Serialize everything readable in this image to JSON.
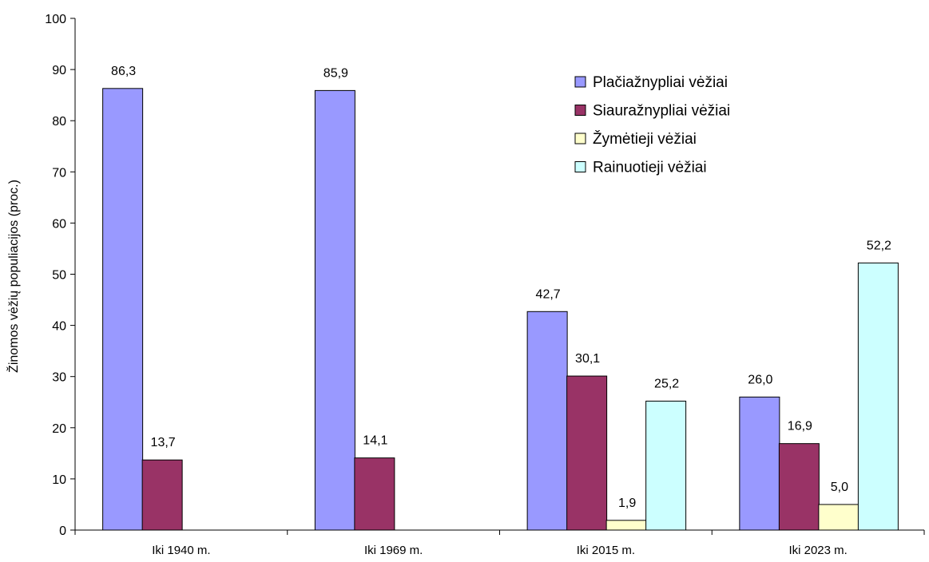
{
  "chart_data": {
    "type": "bar",
    "title": "",
    "xlabel": "",
    "ylabel": "Žinomos vėžių populiacijos (proc.)",
    "ylim": [
      0,
      100
    ],
    "yticks": [
      0,
      10,
      20,
      30,
      40,
      50,
      60,
      70,
      80,
      90,
      100
    ],
    "categories": [
      "Iki 1940 m.",
      "Iki 1969 m.",
      "Iki 2015 m.",
      "Iki 2023 m."
    ],
    "series": [
      {
        "name": "Plačiažnypliai vėžiai",
        "color": "#9999ff",
        "values": [
          86.3,
          85.9,
          42.7,
          26.0
        ],
        "labels": [
          "86,3",
          "85,9",
          "42,7",
          "26,0"
        ]
      },
      {
        "name": "Siauražnypliai vėžiai",
        "color": "#993366",
        "values": [
          13.7,
          14.1,
          30.1,
          16.9
        ],
        "labels": [
          "13,7",
          "14,1",
          "30,1",
          "16,9"
        ]
      },
      {
        "name": "Žymėtieji vėžiai",
        "color": "#ffffcc",
        "values": [
          null,
          null,
          1.9,
          5.0
        ],
        "labels": [
          null,
          null,
          "1,9",
          "5,0"
        ]
      },
      {
        "name": "Rainuotieji vėžiai",
        "color": "#ccffff",
        "values": [
          null,
          null,
          25.2,
          52.2
        ],
        "labels": [
          null,
          null,
          "25,2",
          "52,2"
        ]
      }
    ],
    "legend_position": "top-right",
    "grid": false
  }
}
